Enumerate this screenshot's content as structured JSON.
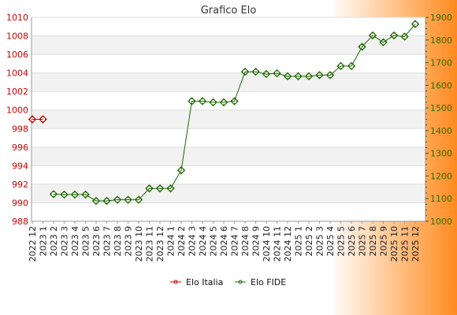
{
  "colors": {
    "italia": "#cc0000",
    "fide": "#1f6b00",
    "band": "#f2f2f2",
    "plot_bg": "#ffffff",
    "bg_left": "#ffffff",
    "bg_right": "#ff8a1e"
  },
  "chart_data": {
    "type": "line",
    "title": "Grafico Elo",
    "grid": true,
    "legend_placement": "bottom-center",
    "x": [
      "2022 12",
      "2023 1",
      "2023 2",
      "2023 3",
      "2023 4",
      "2023 5",
      "2023 6",
      "2023 7",
      "2023 8",
      "2023 9",
      "2023 10",
      "2023 11",
      "2023 12",
      "2024 1",
      "2024 2",
      "2024 3",
      "2024 4",
      "2024 5",
      "2024 6",
      "2024 7",
      "2024 8",
      "2024 9",
      "2024 10",
      "2024 11",
      "2024 12",
      "2025 1",
      "2025 2",
      "2025 3",
      "2025 4",
      "2025 5",
      "2025 6",
      "2025 7",
      "2025 8",
      "2025 9",
      "2025 10",
      "2025 11",
      "2025 12"
    ],
    "y_left": {
      "range": [
        988,
        1010
      ],
      "ticks": [
        "988",
        "990",
        "992",
        "994",
        "996",
        "998",
        "1000",
        "1002",
        "1004",
        "1006",
        "1008",
        "1010"
      ]
    },
    "y_right": {
      "range": [
        1000,
        1900
      ],
      "ticks": [
        "1000",
        "1100",
        "1200",
        "1300",
        "1400",
        "1500",
        "1600",
        "1700",
        "1800",
        "1900"
      ]
    },
    "series": [
      {
        "name": "Elo Italia",
        "axis": "left",
        "values": [
          999,
          999,
          null,
          null,
          null,
          null,
          null,
          null,
          null,
          null,
          null,
          null,
          null,
          null,
          null,
          null,
          null,
          null,
          null,
          null,
          null,
          null,
          null,
          null,
          null,
          null,
          null,
          null,
          null,
          null,
          null,
          null,
          null,
          null,
          null,
          null,
          null
        ]
      },
      {
        "name": "Elo FIDE",
        "axis": "right",
        "values": [
          null,
          null,
          1120,
          1118,
          1118,
          1118,
          1090,
          1090,
          1095,
          1095,
          1095,
          1145,
          1145,
          1145,
          1225,
          1530,
          1530,
          1525,
          1525,
          1530,
          1660,
          1660,
          1650,
          1653,
          1640,
          1640,
          1640,
          1645,
          1645,
          1685,
          1685,
          1770,
          1820,
          1790,
          1820,
          1815,
          1870
        ]
      }
    ]
  }
}
